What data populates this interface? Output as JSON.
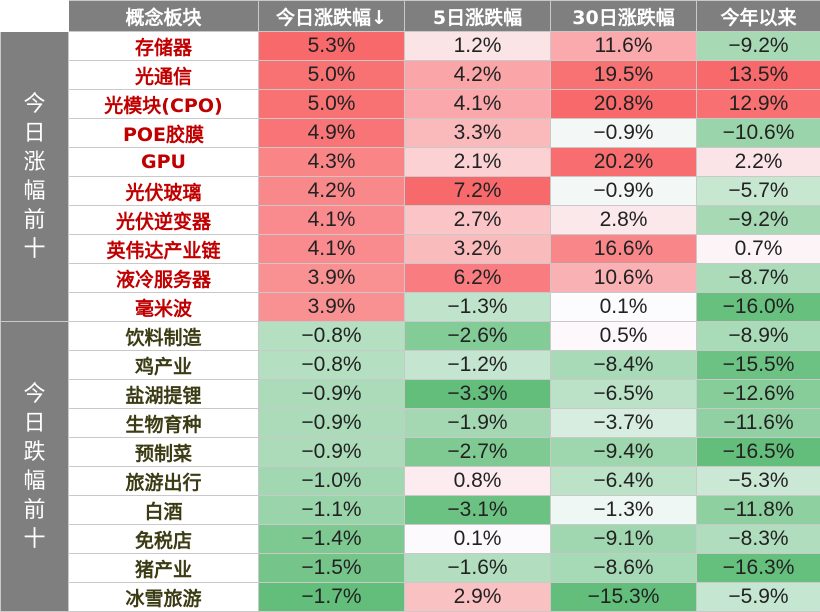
{
  "chart_data": {
    "type": "table",
    "columns": [
      "",
      "概念板块",
      "今日涨跌幅↓",
      "5日涨跌幅",
      "30日涨跌幅",
      "今年以来"
    ],
    "groups": [
      {
        "label": "今日涨幅前十",
        "direction": "up",
        "rows": [
          {
            "name": "存储器",
            "v": [
              5.3,
              1.2,
              11.6,
              -9.2
            ]
          },
          {
            "name": "光通信",
            "v": [
              5.0,
              4.2,
              19.5,
              13.5
            ]
          },
          {
            "name": "光模块(CPO)",
            "v": [
              5.0,
              4.1,
              20.8,
              12.9
            ]
          },
          {
            "name": "POE胶膜",
            "v": [
              4.9,
              3.3,
              -0.9,
              -10.6
            ]
          },
          {
            "name": "GPU",
            "v": [
              4.3,
              2.1,
              20.2,
              2.2
            ]
          },
          {
            "name": "光伏玻璃",
            "v": [
              4.2,
              7.2,
              -0.9,
              -5.7
            ]
          },
          {
            "name": "光伏逆变器",
            "v": [
              4.1,
              2.7,
              2.8,
              -9.2
            ]
          },
          {
            "name": "英伟达产业链",
            "v": [
              4.1,
              3.2,
              16.6,
              0.7
            ]
          },
          {
            "name": "液冷服务器",
            "v": [
              3.9,
              6.2,
              10.6,
              -8.7
            ]
          },
          {
            "name": "毫米波",
            "v": [
              3.9,
              -1.3,
              0.1,
              -16.0
            ]
          }
        ]
      },
      {
        "label": "今日跌幅前十",
        "direction": "down",
        "rows": [
          {
            "name": "饮料制造",
            "v": [
              -0.8,
              -2.6,
              0.5,
              -8.9
            ]
          },
          {
            "name": "鸡产业",
            "v": [
              -0.8,
              -1.2,
              -8.4,
              -15.5
            ]
          },
          {
            "name": "盐湖提锂",
            "v": [
              -0.9,
              -3.3,
              -6.5,
              -12.6
            ]
          },
          {
            "name": "生物育种",
            "v": [
              -0.9,
              -1.9,
              -3.7,
              -11.6
            ]
          },
          {
            "name": "预制菜",
            "v": [
              -0.9,
              -2.7,
              -9.4,
              -16.5
            ]
          },
          {
            "name": "旅游出行",
            "v": [
              -1.0,
              0.8,
              -6.4,
              -5.3
            ]
          },
          {
            "name": "白酒",
            "v": [
              -1.1,
              -3.1,
              -1.3,
              -11.8
            ]
          },
          {
            "name": "免税店",
            "v": [
              -1.4,
              0.1,
              -9.1,
              -8.3
            ]
          },
          {
            "name": "猪产业",
            "v": [
              -1.5,
              -1.6,
              -8.6,
              -16.3
            ]
          },
          {
            "name": "冰雪旅游",
            "v": [
              -1.7,
              2.9,
              -15.3,
              -5.9
            ]
          }
        ]
      }
    ],
    "value_format": "percent_1dp",
    "sorted_by": "今日涨跌幅↓",
    "colors": {
      "header_bg": "#7f7f7f",
      "header_text": "#ffffff",
      "up_name": "#c00000",
      "down_name": "#3b3b14",
      "positive_max": "#f8696b",
      "negative_max": "#63be7b",
      "neutral": "#fcfcff"
    }
  }
}
